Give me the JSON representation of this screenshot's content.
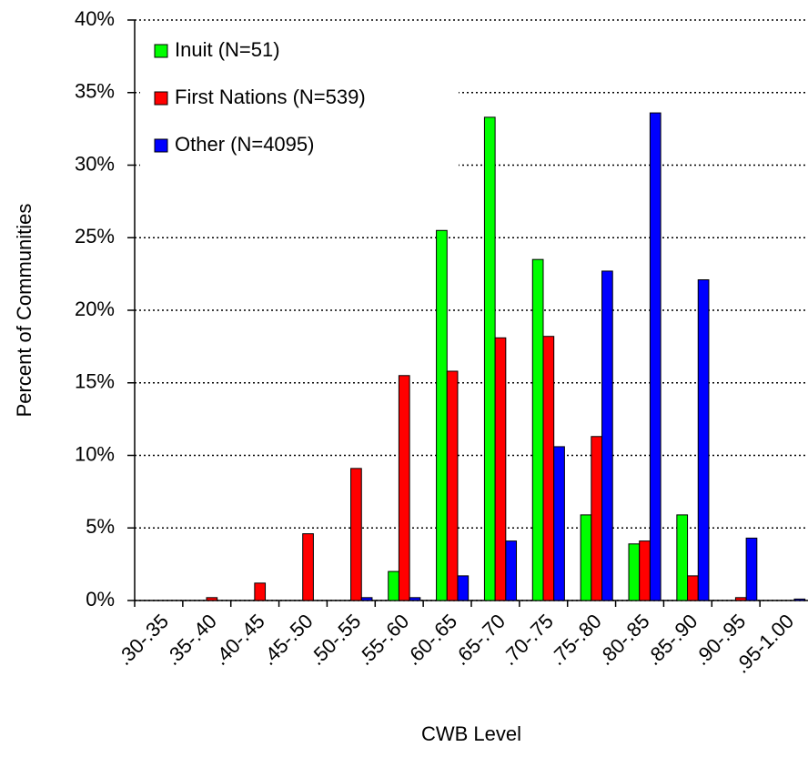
{
  "chart_data": {
    "type": "bar",
    "x_label": "CWB Level",
    "y_label": "Percent of Communities",
    "categories": [
      ".30-.35",
      ".35-.40",
      ".40-.45",
      ".45-.50",
      ".50-.55",
      ".55-.60",
      ".60-.65",
      ".65-.70",
      ".70-.75",
      ".75-.80",
      ".80-.85",
      ".85-.90",
      ".90-.95",
      ".95-1.00"
    ],
    "series": [
      {
        "name": "Inuit (N=51)",
        "color": "#00ff00",
        "values": [
          0,
          0,
          0,
          0,
          0,
          2.0,
          25.5,
          33.3,
          23.5,
          5.9,
          3.9,
          5.9,
          0,
          0
        ]
      },
      {
        "name": "First Nations (N=539)",
        "color": "#ff0000",
        "values": [
          0,
          0.2,
          1.2,
          4.6,
          9.1,
          15.5,
          15.8,
          18.1,
          18.2,
          11.3,
          4.1,
          1.7,
          0.2,
          0
        ]
      },
      {
        "name": "Other (N=4095)",
        "color": "#0000ff",
        "values": [
          0,
          0,
          0,
          0,
          0.2,
          0.2,
          1.7,
          4.1,
          10.6,
          22.7,
          33.6,
          22.1,
          4.3,
          0.1
        ]
      }
    ],
    "ylim": [
      0,
      40
    ],
    "yticks": [
      {
        "value": 0,
        "label": "0%"
      },
      {
        "value": 5,
        "label": "5%"
      },
      {
        "value": 10,
        "label": "10%"
      },
      {
        "value": 15,
        "label": "15%"
      },
      {
        "value": 20,
        "label": "20%"
      },
      {
        "value": 25,
        "label": "25%"
      },
      {
        "value": 30,
        "label": "30%"
      },
      {
        "value": 35,
        "label": "35%"
      },
      {
        "value": 40,
        "label": "40%"
      }
    ],
    "grid": true,
    "legend": "upper-left"
  }
}
